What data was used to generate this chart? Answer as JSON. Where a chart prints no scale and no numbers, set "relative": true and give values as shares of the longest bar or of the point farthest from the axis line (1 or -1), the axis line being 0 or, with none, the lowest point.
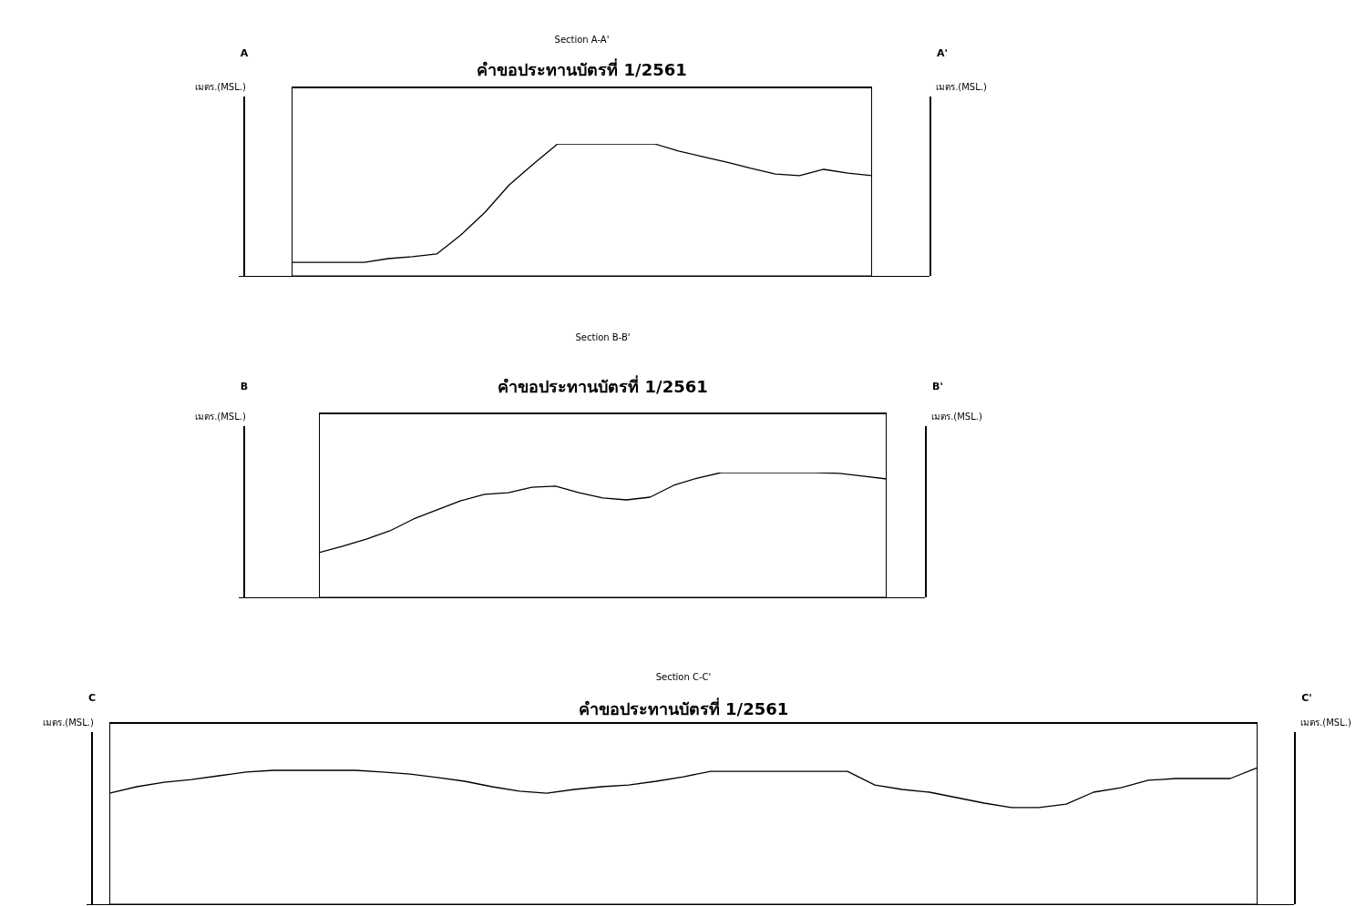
{
  "chart_data": [
    {
      "type": "line",
      "relative": true,
      "title": "Section A-A'",
      "subtitle": "คำขอประทานบัตรที่ 1/2561",
      "ylabel": "เมตร.(MSL.)",
      "y2label": "เมตร.(MSL.)",
      "annotations": [
        "A",
        "A'"
      ],
      "color": "#000000",
      "grid": false,
      "legend": false,
      "marker": "none",
      "line_style": "solid",
      "categories": [
        null,
        null,
        null,
        null,
        null,
        null,
        null,
        null,
        null,
        null,
        null,
        null,
        null,
        null,
        null,
        null,
        null,
        null,
        null,
        null,
        null,
        null,
        null,
        null,
        null
      ],
      "values": [
        0.103,
        0.103,
        0.103,
        0.103,
        0.131,
        0.145,
        0.166,
        0.31,
        0.483,
        0.69,
        0.848,
        1,
        1,
        1,
        1,
        1,
        0.945,
        0.903,
        0.862,
        0.814,
        0.772,
        0.759,
        0.807,
        0.779,
        0.759
      ]
    },
    {
      "type": "line",
      "relative": true,
      "title": "Section B-B'",
      "subtitle": "คำขอประทานบัตรที่ 1/2561",
      "ylabel": "เมตร.(MSL.)",
      "y2label": "เมตร.(MSL.)",
      "annotations": [
        "B",
        "B'"
      ],
      "color": "#000000",
      "grid": false,
      "legend": false,
      "marker": "none",
      "line_style": "solid",
      "categories": [
        null,
        null,
        null,
        null,
        null,
        null,
        null,
        null,
        null,
        null,
        null,
        null,
        null,
        null,
        null,
        null,
        null,
        null,
        null,
        null,
        null,
        null,
        null,
        null,
        null
      ],
      "values": [
        0.358,
        0.409,
        0.467,
        0.533,
        0.628,
        0.701,
        0.774,
        0.825,
        0.839,
        0.883,
        0.891,
        0.839,
        0.796,
        0.781,
        0.803,
        0.898,
        0.956,
        1,
        1,
        1,
        1,
        1,
        0.993,
        0.971,
        0.949
      ]
    },
    {
      "type": "line",
      "relative": true,
      "title": "Section C-C'",
      "subtitle": "คำขอประทานบัตรที่ 1/2561",
      "ylabel": "เมตร.(MSL.)",
      "y2label": "เมตร.(MSL.)",
      "annotations": [
        "C",
        "C'"
      ],
      "color": "#000000",
      "grid": false,
      "legend": false,
      "marker": "none",
      "line_style": "solid",
      "categories": [
        null,
        null,
        null,
        null,
        null,
        null,
        null,
        null,
        null,
        null,
        null,
        null,
        null,
        null,
        null,
        null,
        null,
        null,
        null,
        null,
        null,
        null,
        null,
        null,
        null,
        null,
        null,
        null,
        null,
        null,
        null,
        null,
        null,
        null,
        null,
        null,
        null,
        null,
        null,
        null,
        null,
        null,
        null
      ],
      "values": [
        0.813,
        0.86,
        0.893,
        0.913,
        0.94,
        0.967,
        0.98,
        0.98,
        0.98,
        0.98,
        0.967,
        0.953,
        0.927,
        0.9,
        0.86,
        0.827,
        0.813,
        0.84,
        0.86,
        0.873,
        0.9,
        0.933,
        0.973,
        0.973,
        0.973,
        0.973,
        0.973,
        0.973,
        0.873,
        0.84,
        0.82,
        0.78,
        0.74,
        0.707,
        0.707,
        0.733,
        0.82,
        0.853,
        0.907,
        0.92,
        0.92,
        0.92,
        1
      ]
    }
  ]
}
